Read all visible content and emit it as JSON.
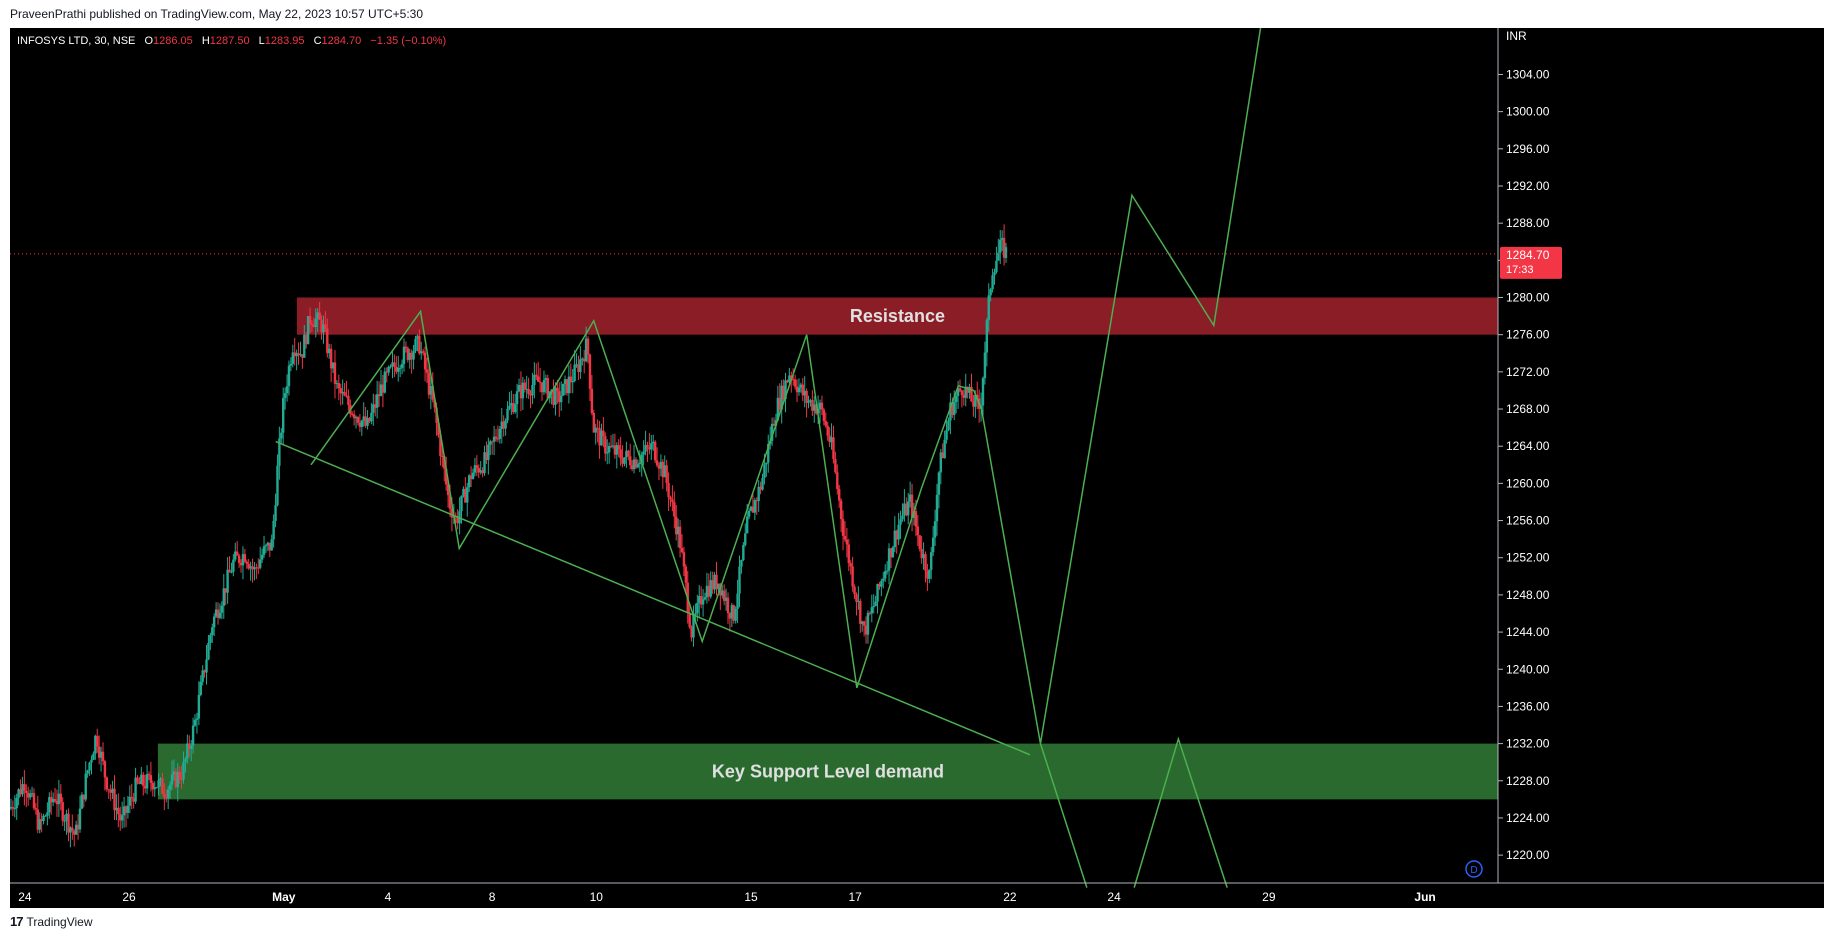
{
  "caption": "PraveenPrathi published on TradingView.com, May 22, 2023 10:57 UTC+5:30",
  "brand": {
    "logo_icon": "tradingview-logo-icon",
    "name": "TradingView"
  },
  "legend": {
    "symbol": "INFOSYS LTD, 30, NSE",
    "o_label": "O",
    "o": "1286.05",
    "h_label": "H",
    "h": "1287.50",
    "l_label": "L",
    "l": "1283.95",
    "c_label": "C",
    "c": "1284.70",
    "change": "−1.35 (−0.10%)"
  },
  "chart_data": {
    "type": "candlestick",
    "currency": "INR",
    "ylim": [
      1217,
      1309
    ],
    "y_ticks": [
      "1220.00",
      "1224.00",
      "1228.00",
      "1232.00",
      "1236.00",
      "1240.00",
      "1244.00",
      "1248.00",
      "1252.00",
      "1256.00",
      "1260.00",
      "1264.00",
      "1268.00",
      "1272.00",
      "1276.00",
      "1280.00",
      "1284.00",
      "1288.00",
      "1292.00",
      "1296.00",
      "1300.00",
      "1304.00"
    ],
    "x_ticks": [
      "24",
      "26",
      "May",
      "4",
      "8",
      "10",
      "15",
      "17",
      "22",
      "24",
      "29",
      "Jun"
    ],
    "last_price": {
      "value": 1284.7,
      "label": "1284.70",
      "countdown": "17:33"
    },
    "colors": {
      "up": "#22ab94",
      "down": "#f23645",
      "pattern": "#4caf50",
      "resistance": "#8b1d27",
      "support": "#2a6a2e"
    },
    "zones": [
      {
        "name": "resistance",
        "label": "Resistance",
        "high": 1280.0,
        "low": 1276.0,
        "from": 0.1928,
        "to": 1.0
      },
      {
        "name": "support",
        "label": "Key Support Level demand",
        "high": 1232.0,
        "low": 1226.0,
        "from": 0.0994,
        "to": 1.0
      }
    ],
    "trendline": [
      [
        0.1786,
        1264.5
      ],
      [
        0.6854,
        1230.8
      ]
    ],
    "zigzag_history": [
      [
        0.2023,
        1262.0
      ],
      [
        0.2759,
        1278.5
      ],
      [
        0.3019,
        1253.0
      ],
      [
        0.3923,
        1277.5
      ],
      [
        0.4652,
        1243.0
      ],
      [
        0.5354,
        1276.0
      ],
      [
        0.5691,
        1238.0
      ],
      [
        0.6126,
        1259.5
      ],
      [
        0.6373,
        1270.5
      ],
      [
        0.6477,
        1270.0
      ],
      [
        0.6529,
        1268.0
      ]
    ],
    "projection": [
      [
        0.6529,
        1268.0
      ],
      [
        0.6925,
        1232.0
      ],
      [
        0.754,
        1291.0
      ],
      [
        0.809,
        1277.0
      ],
      [
        0.8414,
        1310.0
      ]
    ],
    "projection_alt": [
      [
        0.6925,
        1232.0
      ],
      [
        0.7237,
        1216.5
      ]
    ],
    "projection_alt2": [
      [
        0.7555,
        1216.5
      ],
      [
        0.7852,
        1232.5
      ],
      [
        0.818,
        1216.5
      ]
    ],
    "candle_path": [
      [
        0.0,
        1225.0
      ],
      [
        0.01,
        1228.0
      ],
      [
        0.02,
        1223.0
      ],
      [
        0.03,
        1226.5
      ],
      [
        0.044,
        1222.0
      ],
      [
        0.052,
        1229.0
      ],
      [
        0.058,
        1233.0
      ],
      [
        0.064,
        1228.5
      ],
      [
        0.075,
        1223.5
      ],
      [
        0.085,
        1227.5
      ],
      [
        0.096,
        1228.0
      ],
      [
        0.104,
        1227.0
      ],
      [
        0.116,
        1229.0
      ],
      [
        0.124,
        1234.0
      ],
      [
        0.13,
        1239.5
      ],
      [
        0.136,
        1245.0
      ],
      [
        0.143,
        1248.0
      ],
      [
        0.15,
        1251.5
      ],
      [
        0.158,
        1252.5
      ],
      [
        0.164,
        1250.5
      ],
      [
        0.17,
        1252.5
      ],
      [
        0.176,
        1253.5
      ],
      [
        0.18,
        1262.0
      ],
      [
        0.184,
        1269.0
      ],
      [
        0.19,
        1275.0
      ],
      [
        0.196,
        1274.0
      ],
      [
        0.202,
        1278.0
      ],
      [
        0.21,
        1277.0
      ],
      [
        0.22,
        1270.0
      ],
      [
        0.23,
        1268.0
      ],
      [
        0.24,
        1266.0
      ],
      [
        0.25,
        1270.5
      ],
      [
        0.262,
        1273.5
      ],
      [
        0.275,
        1275.0
      ],
      [
        0.285,
        1268.0
      ],
      [
        0.295,
        1258.0
      ],
      [
        0.3,
        1256.0
      ],
      [
        0.31,
        1261.0
      ],
      [
        0.32,
        1262.5
      ],
      [
        0.33,
        1266.5
      ],
      [
        0.343,
        1270.0
      ],
      [
        0.356,
        1271.0
      ],
      [
        0.368,
        1269.0
      ],
      [
        0.38,
        1272.0
      ],
      [
        0.388,
        1275.0
      ],
      [
        0.392,
        1266.0
      ],
      [
        0.4,
        1264.0
      ],
      [
        0.41,
        1263.0
      ],
      [
        0.42,
        1262.5
      ],
      [
        0.432,
        1264.0
      ],
      [
        0.44,
        1261.0
      ],
      [
        0.45,
        1254.0
      ],
      [
        0.458,
        1244.0
      ],
      [
        0.466,
        1248.5
      ],
      [
        0.476,
        1249.5
      ],
      [
        0.486,
        1245.5
      ],
      [
        0.496,
        1256.0
      ],
      [
        0.505,
        1260.0
      ],
      [
        0.514,
        1267.5
      ],
      [
        0.524,
        1272.0
      ],
      [
        0.535,
        1269.0
      ],
      [
        0.545,
        1268.0
      ],
      [
        0.552,
        1264.0
      ],
      [
        0.56,
        1255.0
      ],
      [
        0.566,
        1250.0
      ],
      [
        0.574,
        1244.0
      ],
      [
        0.582,
        1247.5
      ],
      [
        0.59,
        1252.0
      ],
      [
        0.598,
        1256.0
      ],
      [
        0.605,
        1258.0
      ],
      [
        0.612,
        1253.0
      ],
      [
        0.618,
        1250.0
      ],
      [
        0.624,
        1261.0
      ],
      [
        0.632,
        1268.0
      ],
      [
        0.64,
        1270.5
      ],
      [
        0.646,
        1269.0
      ],
      [
        0.652,
        1268.0
      ],
      [
        0.657,
        1278.0
      ],
      [
        0.66,
        1283.0
      ],
      [
        0.666,
        1285.5
      ],
      [
        0.67,
        1284.7
      ]
    ]
  }
}
